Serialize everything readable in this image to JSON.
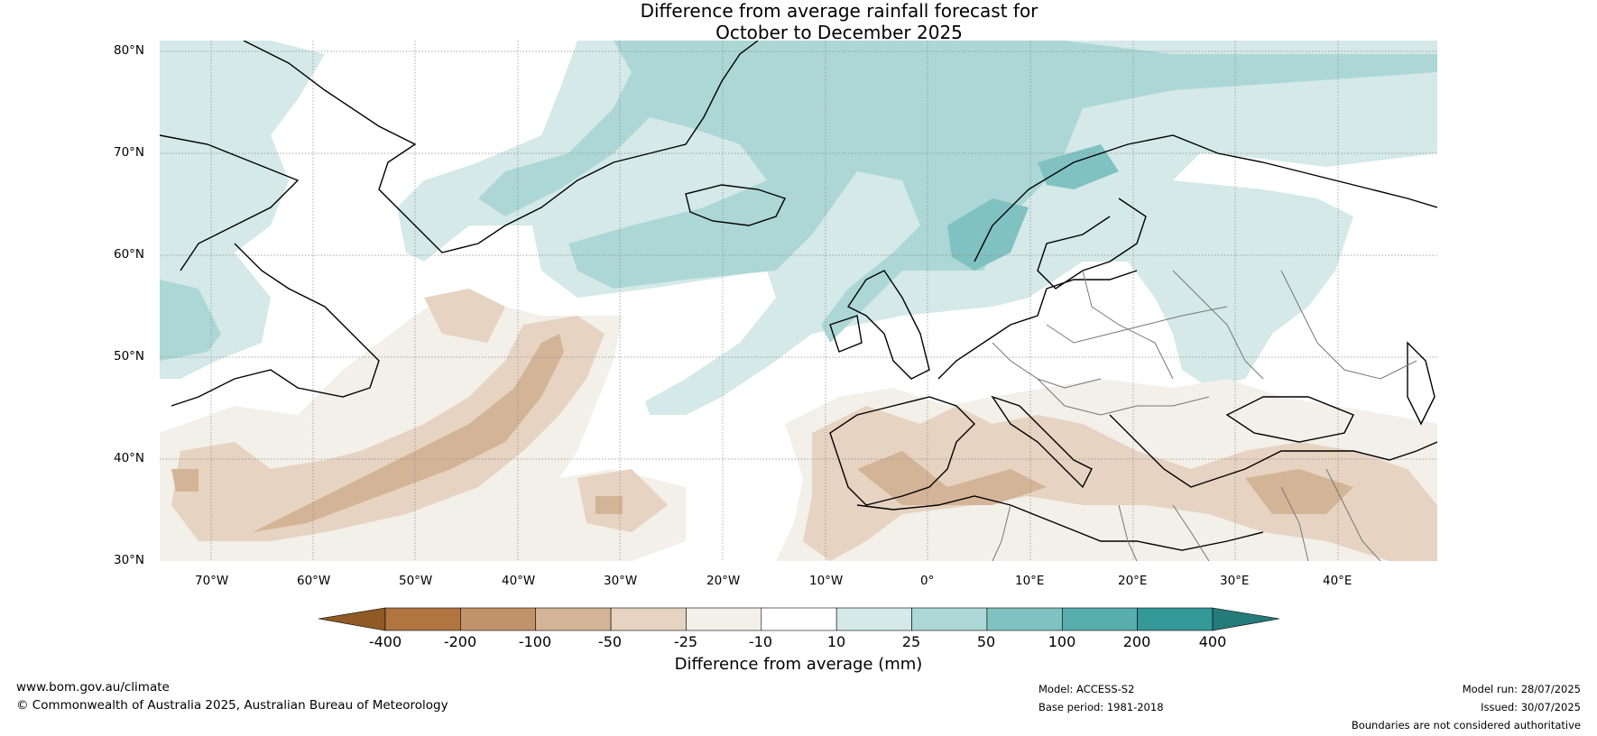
{
  "title_line1": "Difference from average rainfall forecast for",
  "title_line2": "October to December 2025",
  "latitude_labels": [
    "80°N",
    "70°N",
    "60°N",
    "50°N",
    "40°N",
    "30°N"
  ],
  "longitude_labels": [
    "70°W",
    "60°W",
    "50°W",
    "40°W",
    "30°W",
    "20°W",
    "10°W",
    "0°",
    "10°E",
    "20°E",
    "30°E",
    "40°E"
  ],
  "colorbar": {
    "title": "Difference from average (mm)",
    "ticks": [
      "-400",
      "-200",
      "-100",
      "-50",
      "-25",
      "-10",
      "10",
      "25",
      "50",
      "100",
      "200",
      "400"
    ],
    "colors": [
      "#8f5a26",
      "#b07541",
      "#c2936a",
      "#d4b497",
      "#e6d3c2",
      "#f3efe9",
      "#ffffff",
      "#d4e9e8",
      "#acd7d6",
      "#80c2c1",
      "#58adad",
      "#35999a",
      "#257a7a"
    ]
  },
  "footer": {
    "site": "www.bom.gov.au/climate",
    "copyright": "© Commonwealth of Australia 2025, Australian Bureau of Meteorology",
    "model": "Model: ACCESS-S2",
    "base_period": "Base period: 1981-2018",
    "model_run": "Model run: 28/07/2025",
    "issued": "Issued: 30/07/2025",
    "disclaimer": "Boundaries are not considered authoritative"
  }
}
